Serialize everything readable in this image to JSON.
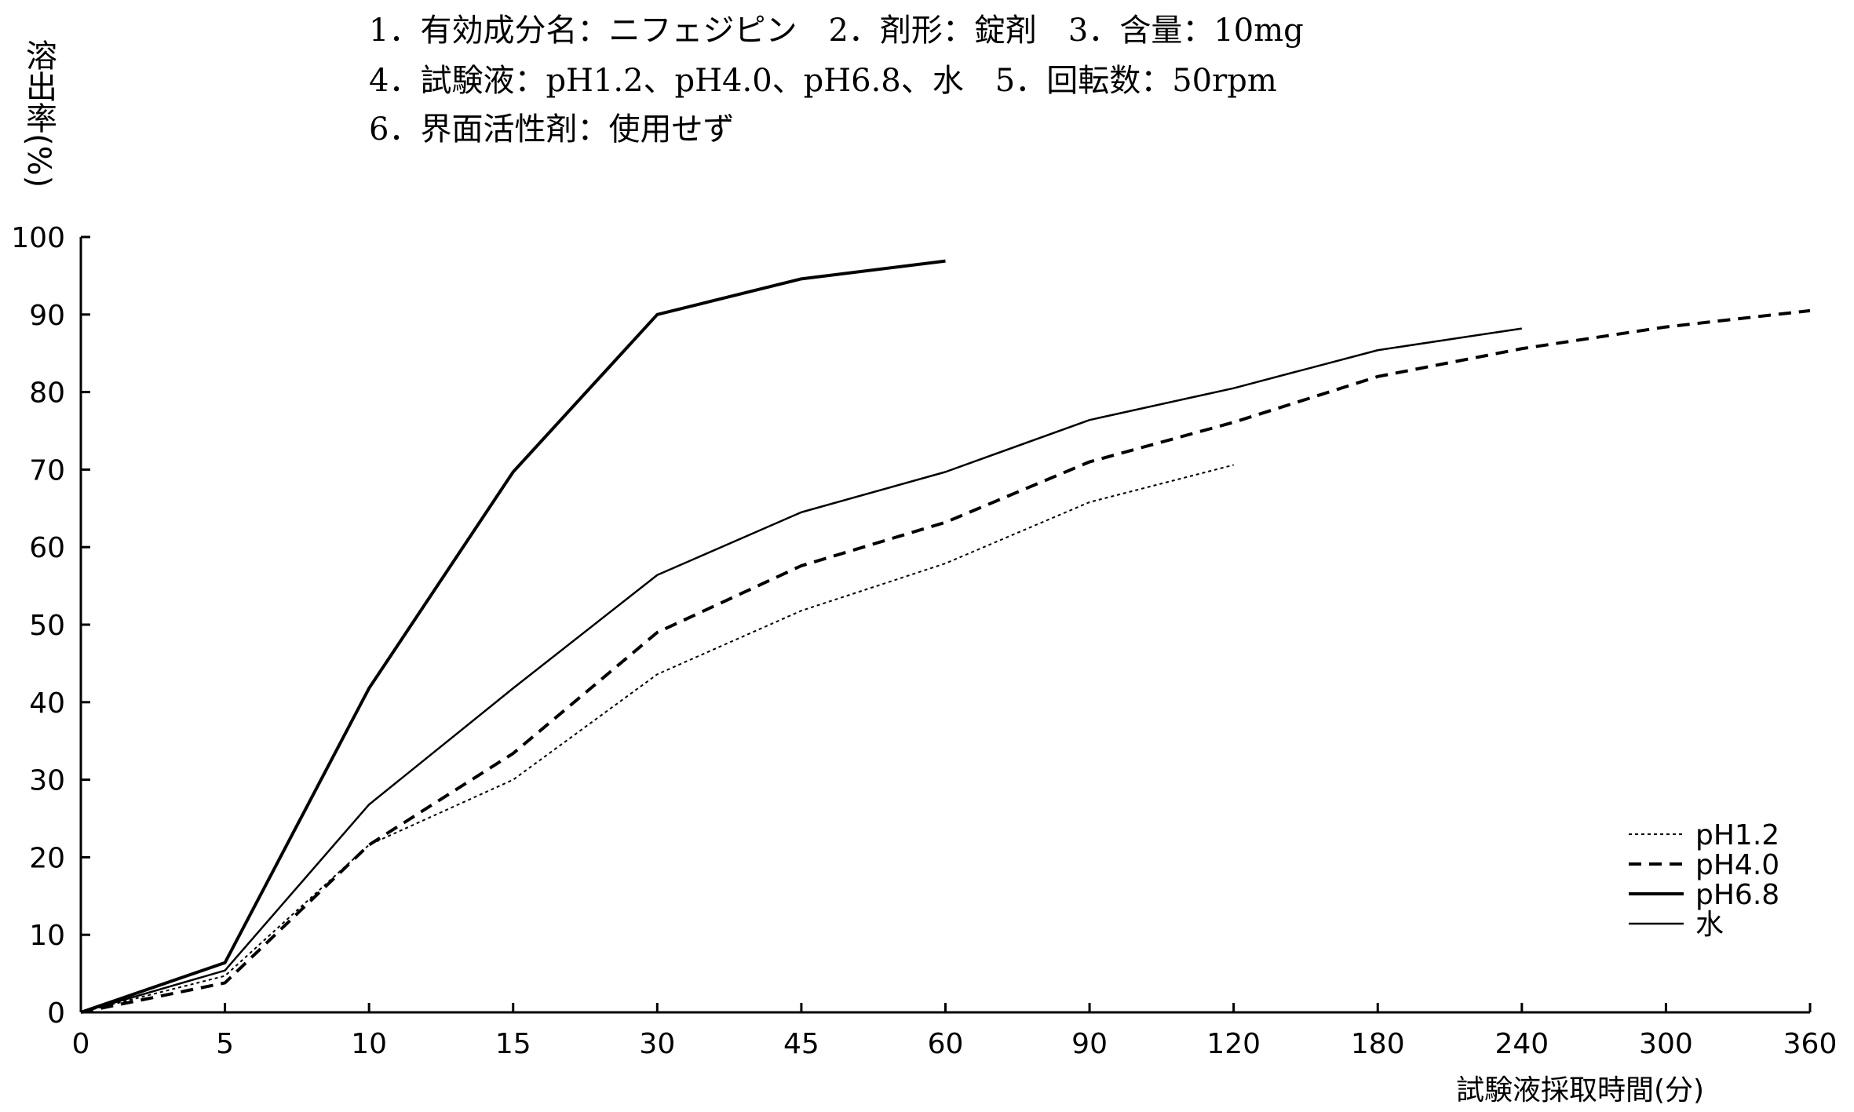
{
  "conditions": [
    "1．有効成分名：ニフェジピン　2．剤形：錠剤　3．含量：10mg",
    "4．試験液：pH1.2、pH4.0、pH6.8、水　5．回転数：50rpm",
    "6．界面活性剤：使用せず"
  ],
  "chart_data": {
    "type": "line",
    "title": "",
    "xlabel": "試験液採取時間(分)",
    "ylabel": "溶出率(%)",
    "x": [
      0,
      5,
      10,
      15,
      30,
      45,
      60,
      90,
      120,
      180,
      240,
      300,
      360
    ],
    "x_ticks": [
      "0",
      "5",
      "10",
      "15",
      "30",
      "45",
      "60",
      "90",
      "120",
      "180",
      "240",
      "300",
      "360"
    ],
    "x_scale": "categorical (evenly spaced)",
    "ylim": [
      0,
      100
    ],
    "y_ticks": [
      "0",
      "10",
      "20",
      "30",
      "40",
      "50",
      "60",
      "70",
      "80",
      "90",
      "100"
    ],
    "grid": false,
    "legend_position": "bottom-right",
    "series": [
      {
        "name": "pH1.2",
        "style": "dotted",
        "values": [
          0,
          4.7,
          21.6,
          30,
          43.6,
          51.8,
          57.9,
          65.8,
          70.6,
          null,
          null,
          null,
          null
        ]
      },
      {
        "name": "pH4.0",
        "style": "dashed",
        "values": [
          0,
          3.8,
          21.6,
          33.4,
          49,
          57.6,
          63.2,
          71,
          76.1,
          82,
          85.6,
          88.4,
          90.5
        ]
      },
      {
        "name": "pH6.8",
        "style": "thick-solid",
        "values": [
          0,
          6.4,
          41.8,
          69.7,
          90,
          94.6,
          96.9,
          null,
          null,
          null,
          null,
          null,
          null
        ]
      },
      {
        "name": "水",
        "style": "thin-solid",
        "values": [
          0,
          5.4,
          26.8,
          41.8,
          56.4,
          64.5,
          69.7,
          76.4,
          80.5,
          85.4,
          88.2,
          null,
          null
        ]
      }
    ]
  }
}
